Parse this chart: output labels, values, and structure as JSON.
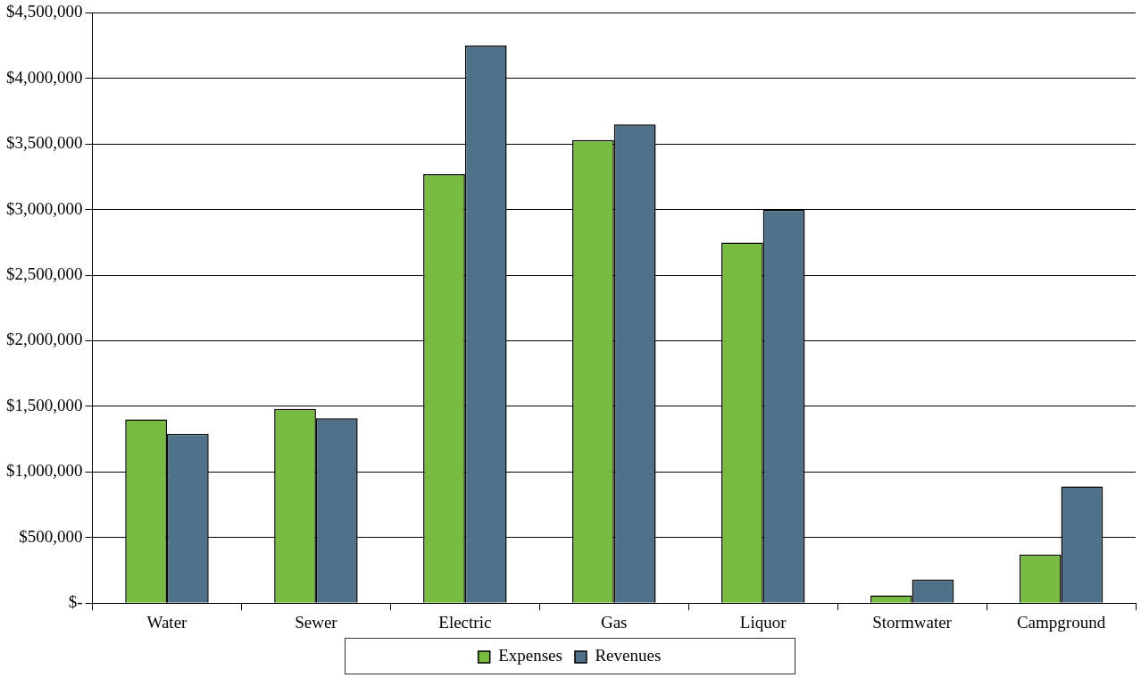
{
  "chart_data": {
    "type": "bar",
    "categories": [
      "Water",
      "Sewer",
      "Electric",
      "Gas",
      "Liquor",
      "Stormwater",
      "Campground"
    ],
    "series": [
      {
        "name": "Expenses",
        "color": "#77bb41",
        "values": [
          1400000,
          1480000,
          3270000,
          3530000,
          2750000,
          60000,
          370000
        ]
      },
      {
        "name": "Revenues",
        "color": "#4f7189",
        "values": [
          1290000,
          1410000,
          4250000,
          3650000,
          3000000,
          180000,
          890000
        ]
      }
    ],
    "ylim": [
      0,
      4500000
    ],
    "yticks": [
      {
        "value": 0,
        "label": "$-"
      },
      {
        "value": 500000,
        "label": "$500,000"
      },
      {
        "value": 1000000,
        "label": "$1,000,000"
      },
      {
        "value": 1500000,
        "label": "$1,500,000"
      },
      {
        "value": 2000000,
        "label": "$2,000,000"
      },
      {
        "value": 2500000,
        "label": "$2,500,000"
      },
      {
        "value": 3000000,
        "label": "$3,000,000"
      },
      {
        "value": 3500000,
        "label": "$3,500,000"
      },
      {
        "value": 4000000,
        "label": "$4,000,000"
      },
      {
        "value": 4500000,
        "label": "$4,500,000"
      }
    ],
    "grid": "y",
    "legend": "bottom"
  }
}
